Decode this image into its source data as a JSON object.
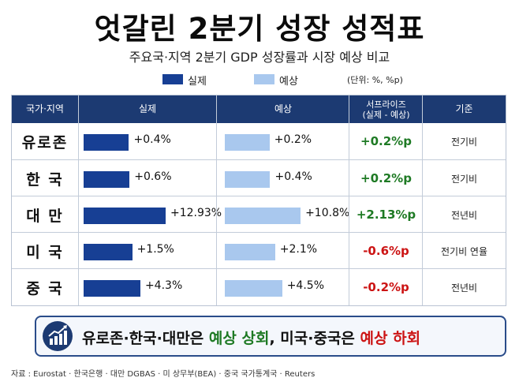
{
  "title": "엇갈린 2분기 성장 성적표",
  "subtitle": "주요국·지역 2분기 GDP 성장률과 시장 예상 비교",
  "legend": {
    "actual": "실제",
    "expected": "예상",
    "unit": "(단위: %, %p)",
    "actual_color": "#173f94",
    "expected_color": "#a9c8ee"
  },
  "headers": {
    "region": "국가·지역",
    "actual": "실제",
    "expected": "예상",
    "surprise_line1": "서프라이즈",
    "surprise_line2": "(실제 - 예상)",
    "basis": "기준"
  },
  "chart_data": {
    "type": "bar",
    "categories": [
      "유로존",
      "한 국",
      "대 만",
      "미 국",
      "중 국"
    ],
    "series": [
      {
        "name": "실제",
        "values": [
          0.4,
          0.6,
          12.93,
          1.5,
          4.3
        ]
      },
      {
        "name": "예상",
        "values": [
          0.2,
          0.4,
          10.8,
          2.1,
          4.5
        ]
      }
    ],
    "ylim": [
      0,
      12.93
    ]
  },
  "rows": [
    {
      "country": "유로존",
      "actual_label": "+0.4%",
      "expected_label": "+0.2%",
      "surprise": "+0.2%p",
      "surprise_sign": "pos",
      "basis": "전기비"
    },
    {
      "country": "한 국",
      "actual_label": "+0.6%",
      "expected_label": "+0.4%",
      "surprise": "+0.2%p",
      "surprise_sign": "pos",
      "basis": "전기비"
    },
    {
      "country": "대 만",
      "actual_label": "+12.93%",
      "expected_label": "+10.8%",
      "surprise": "+2.13%p",
      "surprise_sign": "pos",
      "basis": "전년비"
    },
    {
      "country": "미 국",
      "actual_label": "+1.5%",
      "expected_label": "+2.1%",
      "surprise": "-0.6%p",
      "surprise_sign": "neg",
      "basis": "전기비 연율"
    },
    {
      "country": "중 국",
      "actual_label": "+4.3%",
      "expected_label": "+4.5%",
      "surprise": "-0.2%p",
      "surprise_sign": "neg",
      "basis": "전년비"
    }
  ],
  "banner": {
    "icon": "growth-chart-icon",
    "part1": "유로존·한국·대만은 ",
    "part2": "예상 상회",
    "part3": ", 미국·중국은 ",
    "part4": "예상 하회"
  },
  "source": "자료 : Eurostat · 한국은행 · 대만 DGBAS · 미 상무부(BEA) · 중국 국가통계국 · Reuters"
}
